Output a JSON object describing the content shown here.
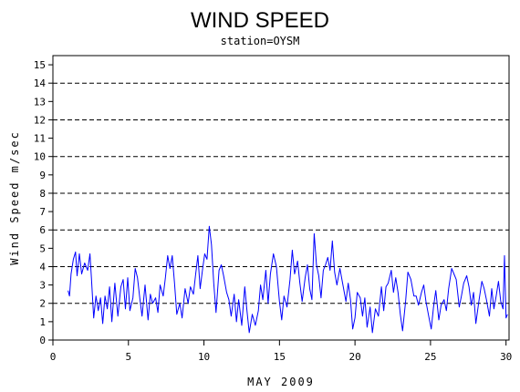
{
  "chart_data": {
    "type": "line",
    "title": "WIND SPEED",
    "subtitle": "station=OYSM",
    "xlabel": "MAY 2009",
    "ylabel": "Wind Speed m/sec",
    "xlim": [
      0,
      30.2
    ],
    "ylim": [
      0,
      15.5
    ],
    "x_ticks": [
      0,
      5,
      10,
      15,
      20,
      25,
      30
    ],
    "y_ticks": [
      0,
      1,
      2,
      3,
      4,
      5,
      6,
      7,
      8,
      9,
      10,
      11,
      12,
      13,
      14,
      15
    ],
    "reference_lines": [
      0,
      2,
      4,
      6,
      8,
      10,
      12,
      14
    ],
    "line_color": "#0000ff",
    "series": [
      {
        "points": [
          [
            1.0,
            2.7
          ],
          [
            1.1,
            2.4
          ],
          [
            1.2,
            3.6
          ],
          [
            1.35,
            4.4
          ],
          [
            1.5,
            4.8
          ],
          [
            1.6,
            3.5
          ],
          [
            1.75,
            4.7
          ],
          [
            1.9,
            3.6
          ],
          [
            2.1,
            4.2
          ],
          [
            2.3,
            3.8
          ],
          [
            2.45,
            4.7
          ],
          [
            2.55,
            3.4
          ],
          [
            2.7,
            1.2
          ],
          [
            2.85,
            2.4
          ],
          [
            3.0,
            1.6
          ],
          [
            3.15,
            2.3
          ],
          [
            3.3,
            0.9
          ],
          [
            3.45,
            2.4
          ],
          [
            3.6,
            1.7
          ],
          [
            3.75,
            2.9
          ],
          [
            3.9,
            1.0
          ],
          [
            4.1,
            3.1
          ],
          [
            4.3,
            1.3
          ],
          [
            4.5,
            2.9
          ],
          [
            4.65,
            3.3
          ],
          [
            4.8,
            1.7
          ],
          [
            4.95,
            3.4
          ],
          [
            5.1,
            1.6
          ],
          [
            5.3,
            2.3
          ],
          [
            5.45,
            3.9
          ],
          [
            5.6,
            3.4
          ],
          [
            5.75,
            2.3
          ],
          [
            5.9,
            1.3
          ],
          [
            6.1,
            3.0
          ],
          [
            6.3,
            1.1
          ],
          [
            6.45,
            2.5
          ],
          [
            6.6,
            2.0
          ],
          [
            6.8,
            2.3
          ],
          [
            6.95,
            1.5
          ],
          [
            7.1,
            3.0
          ],
          [
            7.3,
            2.4
          ],
          [
            7.45,
            3.4
          ],
          [
            7.6,
            4.6
          ],
          [
            7.75,
            3.9
          ],
          [
            7.9,
            4.6
          ],
          [
            8.05,
            3.1
          ],
          [
            8.2,
            1.4
          ],
          [
            8.4,
            2.0
          ],
          [
            8.55,
            1.2
          ],
          [
            8.75,
            2.8
          ],
          [
            8.95,
            2.0
          ],
          [
            9.1,
            2.9
          ],
          [
            9.3,
            2.5
          ],
          [
            9.45,
            3.6
          ],
          [
            9.6,
            4.6
          ],
          [
            9.75,
            2.8
          ],
          [
            9.9,
            3.8
          ],
          [
            10.05,
            4.7
          ],
          [
            10.2,
            4.4
          ],
          [
            10.35,
            6.2
          ],
          [
            10.5,
            5.2
          ],
          [
            10.65,
            3.1
          ],
          [
            10.8,
            1.5
          ],
          [
            11.0,
            3.8
          ],
          [
            11.15,
            4.1
          ],
          [
            11.3,
            3.5
          ],
          [
            11.5,
            2.6
          ],
          [
            11.65,
            2.2
          ],
          [
            11.8,
            1.3
          ],
          [
            12.0,
            2.5
          ],
          [
            12.15,
            1.0
          ],
          [
            12.3,
            2.2
          ],
          [
            12.5,
            0.8
          ],
          [
            12.7,
            2.9
          ],
          [
            12.85,
            1.6
          ],
          [
            13.0,
            0.4
          ],
          [
            13.2,
            1.4
          ],
          [
            13.4,
            0.8
          ],
          [
            13.6,
            1.6
          ],
          [
            13.75,
            3.0
          ],
          [
            13.9,
            2.2
          ],
          [
            14.1,
            3.8
          ],
          [
            14.25,
            2.0
          ],
          [
            14.4,
            3.6
          ],
          [
            14.6,
            4.7
          ],
          [
            14.8,
            4.0
          ],
          [
            15.0,
            2.1
          ],
          [
            15.15,
            1.1
          ],
          [
            15.3,
            2.4
          ],
          [
            15.5,
            1.8
          ],
          [
            15.7,
            3.3
          ],
          [
            15.85,
            4.9
          ],
          [
            16.0,
            3.6
          ],
          [
            16.2,
            4.3
          ],
          [
            16.35,
            3.1
          ],
          [
            16.5,
            2.1
          ],
          [
            16.7,
            3.4
          ],
          [
            16.85,
            4.1
          ],
          [
            17.0,
            2.8
          ],
          [
            17.15,
            2.2
          ],
          [
            17.3,
            5.8
          ],
          [
            17.45,
            4.1
          ],
          [
            17.6,
            3.5
          ],
          [
            17.75,
            2.3
          ],
          [
            17.9,
            3.8
          ],
          [
            18.05,
            4.1
          ],
          [
            18.2,
            4.5
          ],
          [
            18.35,
            3.8
          ],
          [
            18.5,
            5.4
          ],
          [
            18.65,
            3.7
          ],
          [
            18.8,
            3.0
          ],
          [
            19.0,
            3.9
          ],
          [
            19.2,
            3.0
          ],
          [
            19.4,
            2.1
          ],
          [
            19.55,
            3.1
          ],
          [
            19.7,
            2.2
          ],
          [
            19.85,
            0.6
          ],
          [
            20.0,
            1.2
          ],
          [
            20.15,
            2.6
          ],
          [
            20.35,
            2.3
          ],
          [
            20.5,
            1.3
          ],
          [
            20.65,
            2.3
          ],
          [
            20.8,
            0.7
          ],
          [
            21.0,
            1.8
          ],
          [
            21.15,
            0.4
          ],
          [
            21.35,
            1.7
          ],
          [
            21.55,
            1.3
          ],
          [
            21.75,
            2.9
          ],
          [
            21.9,
            1.6
          ],
          [
            22.05,
            2.9
          ],
          [
            22.2,
            3.1
          ],
          [
            22.4,
            3.8
          ],
          [
            22.55,
            2.6
          ],
          [
            22.7,
            3.4
          ],
          [
            22.85,
            2.6
          ],
          [
            23.0,
            1.4
          ],
          [
            23.15,
            0.5
          ],
          [
            23.35,
            2.1
          ],
          [
            23.5,
            3.7
          ],
          [
            23.7,
            3.3
          ],
          [
            23.9,
            2.4
          ],
          [
            24.05,
            2.4
          ],
          [
            24.2,
            1.9
          ],
          [
            24.4,
            2.6
          ],
          [
            24.55,
            3.0
          ],
          [
            24.7,
            2.1
          ],
          [
            24.9,
            1.2
          ],
          [
            25.05,
            0.6
          ],
          [
            25.2,
            1.8
          ],
          [
            25.35,
            2.7
          ],
          [
            25.55,
            1.1
          ],
          [
            25.7,
            1.9
          ],
          [
            25.9,
            2.2
          ],
          [
            26.05,
            1.6
          ],
          [
            26.2,
            2.8
          ],
          [
            26.4,
            3.9
          ],
          [
            26.55,
            3.6
          ],
          [
            26.7,
            3.3
          ],
          [
            26.9,
            1.8
          ],
          [
            27.05,
            2.4
          ],
          [
            27.2,
            3.1
          ],
          [
            27.4,
            3.5
          ],
          [
            27.55,
            2.9
          ],
          [
            27.7,
            1.9
          ],
          [
            27.85,
            2.6
          ],
          [
            28.0,
            0.9
          ],
          [
            28.2,
            2.1
          ],
          [
            28.4,
            3.2
          ],
          [
            28.55,
            2.8
          ],
          [
            28.7,
            2.2
          ],
          [
            28.9,
            1.3
          ],
          [
            29.05,
            2.8
          ],
          [
            29.2,
            1.7
          ],
          [
            29.35,
            2.4
          ],
          [
            29.5,
            3.2
          ],
          [
            29.65,
            2.1
          ],
          [
            29.8,
            1.7
          ],
          [
            29.9,
            4.6
          ],
          [
            30.0,
            1.2
          ],
          [
            30.1,
            1.4
          ]
        ]
      }
    ]
  }
}
